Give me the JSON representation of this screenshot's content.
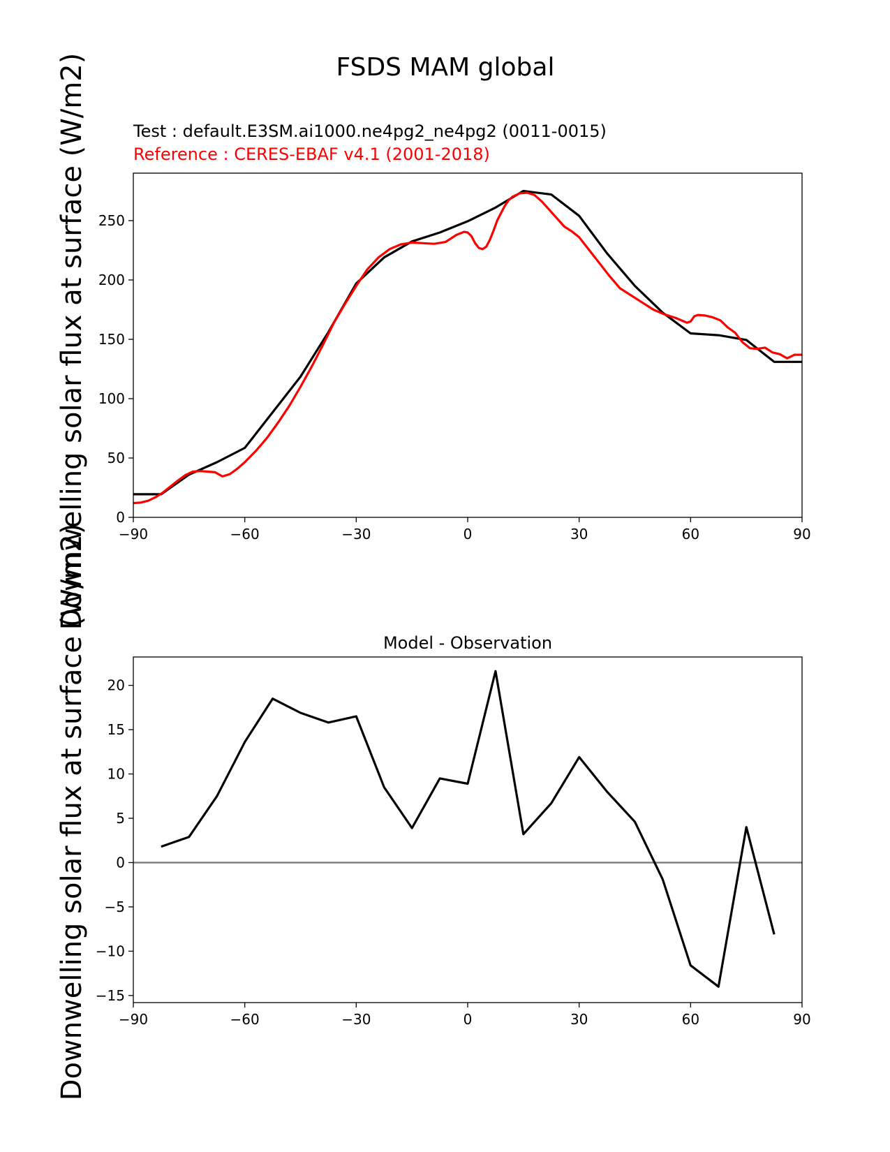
{
  "figure": {
    "suptitle": "FSDS MAM global"
  },
  "chart_data": [
    {
      "type": "line",
      "title_test": "Test : default.E3SM.ai1000.ne4pg2_ne4pg2 (0011-0015)",
      "title_reference": "Reference : CERES-EBAF v4.1 (2001-2018)",
      "ylabel": "Downwelling solar flux at surface (W/m2)",
      "xlim": [
        -90,
        90
      ],
      "ylim": [
        0,
        290
      ],
      "xticks": [
        -90,
        -60,
        -30,
        0,
        30,
        60,
        90
      ],
      "xtick_labels": [
        "−90",
        "−60",
        "−30",
        "0",
        "30",
        "60",
        "90"
      ],
      "yticks": [
        0,
        50,
        100,
        150,
        200,
        250
      ],
      "ytick_labels": [
        "0",
        "50",
        "100",
        "150",
        "200",
        "250"
      ],
      "grid": false,
      "series": [
        {
          "color": "#000000",
          "x": [
            -90,
            -82.5,
            -75,
            -67.5,
            -60,
            -52.5,
            -45,
            -37.5,
            -30,
            -22.5,
            -15,
            -7.5,
            0,
            7.5,
            15,
            22.5,
            30,
            37.5,
            45,
            52.5,
            60,
            67.5,
            75,
            82.5,
            90
          ],
          "y": [
            19.5,
            19.5,
            36,
            46.5,
            58.5,
            88.5,
            118.5,
            156,
            197,
            219,
            232.5,
            240,
            249.5,
            261,
            275,
            272,
            254,
            222.5,
            195,
            172.5,
            155,
            153.5,
            149.5,
            131,
            131
          ]
        },
        {
          "color": "#ff0000",
          "x": [
            -90,
            -88,
            -86,
            -84,
            -82,
            -80,
            -78,
            -76,
            -74,
            -72,
            -70,
            -68,
            -66,
            -64,
            -62,
            -60,
            -57,
            -54,
            -51,
            -48,
            -45,
            -42,
            -39,
            -36,
            -33,
            -30,
            -27,
            -24,
            -21,
            -18,
            -15,
            -12,
            -9,
            -6,
            -3,
            -1,
            0,
            1,
            2,
            3,
            4,
            5,
            6,
            7,
            8,
            9,
            10,
            11,
            12,
            14,
            16,
            18,
            20,
            22,
            24,
            26,
            28,
            30,
            32,
            35,
            38,
            41,
            44,
            47,
            50,
            53,
            56,
            59,
            60,
            61,
            62,
            64,
            66,
            68,
            70,
            72,
            74,
            76,
            78,
            80,
            82,
            84,
            86,
            88,
            90
          ],
          "y": [
            12,
            12.5,
            14,
            17,
            21,
            26,
            31,
            35.5,
            38.5,
            39,
            38.5,
            38,
            34.5,
            36.5,
            41,
            46.5,
            56,
            67,
            80,
            94,
            110,
            127,
            145,
            164,
            180,
            195,
            209,
            219,
            226,
            230,
            231.5,
            231,
            230.5,
            232,
            238,
            240.5,
            240,
            237,
            231,
            227,
            226,
            228,
            234,
            242,
            250.5,
            256.5,
            262.5,
            267,
            270,
            273,
            273.5,
            271.5,
            266,
            259,
            252,
            245,
            241,
            236,
            228,
            216,
            204,
            193,
            187,
            181,
            175,
            171,
            168,
            164,
            165,
            169.5,
            170.5,
            170,
            168.5,
            166,
            160,
            155.5,
            147.5,
            142.5,
            142,
            143,
            139,
            137.5,
            134,
            137,
            137
          ]
        }
      ]
    },
    {
      "type": "line",
      "title": "Model - Observation",
      "ylabel": "Downwelling solar flux at surface (W/m2)",
      "xlim": [
        -90,
        90
      ],
      "ylim": [
        -15.8,
        23.2
      ],
      "xticks": [
        -90,
        -60,
        -30,
        0,
        30,
        60,
        90
      ],
      "xtick_labels": [
        "−90",
        "−60",
        "−30",
        "0",
        "30",
        "60",
        "90"
      ],
      "yticks": [
        -15,
        -10,
        -5,
        0,
        5,
        10,
        15,
        20
      ],
      "ytick_labels": [
        "−15",
        "−10",
        "−5",
        "0",
        "5",
        "10",
        "15",
        "20"
      ],
      "grid": false,
      "zero_line_color": "#808080",
      "series": [
        {
          "color": "#000000",
          "x": [
            -82.5,
            -75,
            -67.5,
            -60,
            -52.5,
            -45,
            -37.5,
            -30,
            -22.5,
            -15,
            -7.5,
            0,
            7.5,
            15,
            22.5,
            30,
            37.5,
            45,
            52.5,
            60,
            67.5,
            75,
            82.5
          ],
          "y": [
            1.8,
            2.9,
            7.5,
            13.6,
            18.5,
            16.9,
            15.8,
            16.5,
            8.5,
            3.9,
            9.5,
            8.9,
            21.6,
            3.2,
            6.7,
            11.9,
            8,
            4.6,
            -1.9,
            -11.6,
            -14,
            4,
            -8.1
          ]
        }
      ]
    }
  ]
}
